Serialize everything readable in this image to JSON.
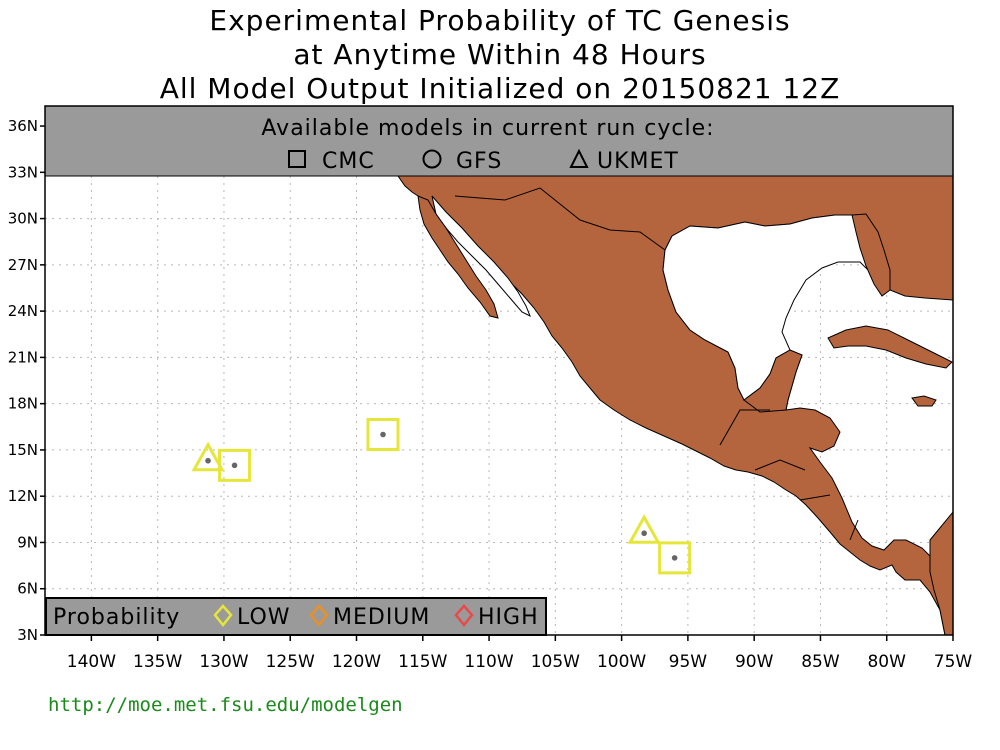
{
  "title": {
    "line1": "Experimental Probability of TC Genesis",
    "line2": "at Anytime Within 48 Hours",
    "line3": "All Model Output Initialized on 20150821 12Z"
  },
  "models_panel": {
    "heading": "Available models in current run cycle:",
    "models": [
      {
        "symbol": "square-icon",
        "label": "CMC"
      },
      {
        "symbol": "circle-icon",
        "label": "GFS"
      },
      {
        "symbol": "triangle-icon",
        "label": "UKMET"
      }
    ]
  },
  "legend": {
    "heading": "Probability",
    "items": [
      {
        "label": "LOW",
        "color": "#e6e63a"
      },
      {
        "label": "MEDIUM",
        "color": "#e8902a"
      },
      {
        "label": "HIGH",
        "color": "#e84a4a"
      }
    ]
  },
  "axes": {
    "lon_labels": [
      "140W",
      "135W",
      "130W",
      "125W",
      "120W",
      "115W",
      "110W",
      "105W",
      "100W",
      "95W",
      "90W",
      "85W",
      "80W",
      "75W"
    ],
    "lon_values": [
      -140,
      -135,
      -130,
      -125,
      -120,
      -115,
      -110,
      -105,
      -100,
      -95,
      -90,
      -85,
      -80,
      -75
    ],
    "lat_labels": [
      "3N",
      "6N",
      "9N",
      "12N",
      "15N",
      "18N",
      "21N",
      "24N",
      "27N",
      "30N",
      "33N",
      "36N"
    ],
    "lat_values": [
      3,
      6,
      9,
      12,
      15,
      18,
      21,
      24,
      27,
      30,
      33,
      36
    ]
  },
  "land_color": "#b5653e",
  "forecasts": [
    {
      "model": "UKMET",
      "lon": -131.2,
      "lat": 14.3,
      "probability": "LOW"
    },
    {
      "model": "CMC",
      "lon": -129.2,
      "lat": 14.0,
      "probability": "LOW"
    },
    {
      "model": "CMC",
      "lon": -118.0,
      "lat": 16.0,
      "probability": "LOW"
    },
    {
      "model": "UKMET",
      "lon": -98.3,
      "lat": 9.6,
      "probability": "LOW"
    },
    {
      "model": "CMC",
      "lon": -96.0,
      "lat": 8.0,
      "probability": "LOW"
    }
  ],
  "url": "http://moe.met.fsu.edu/modelgen"
}
